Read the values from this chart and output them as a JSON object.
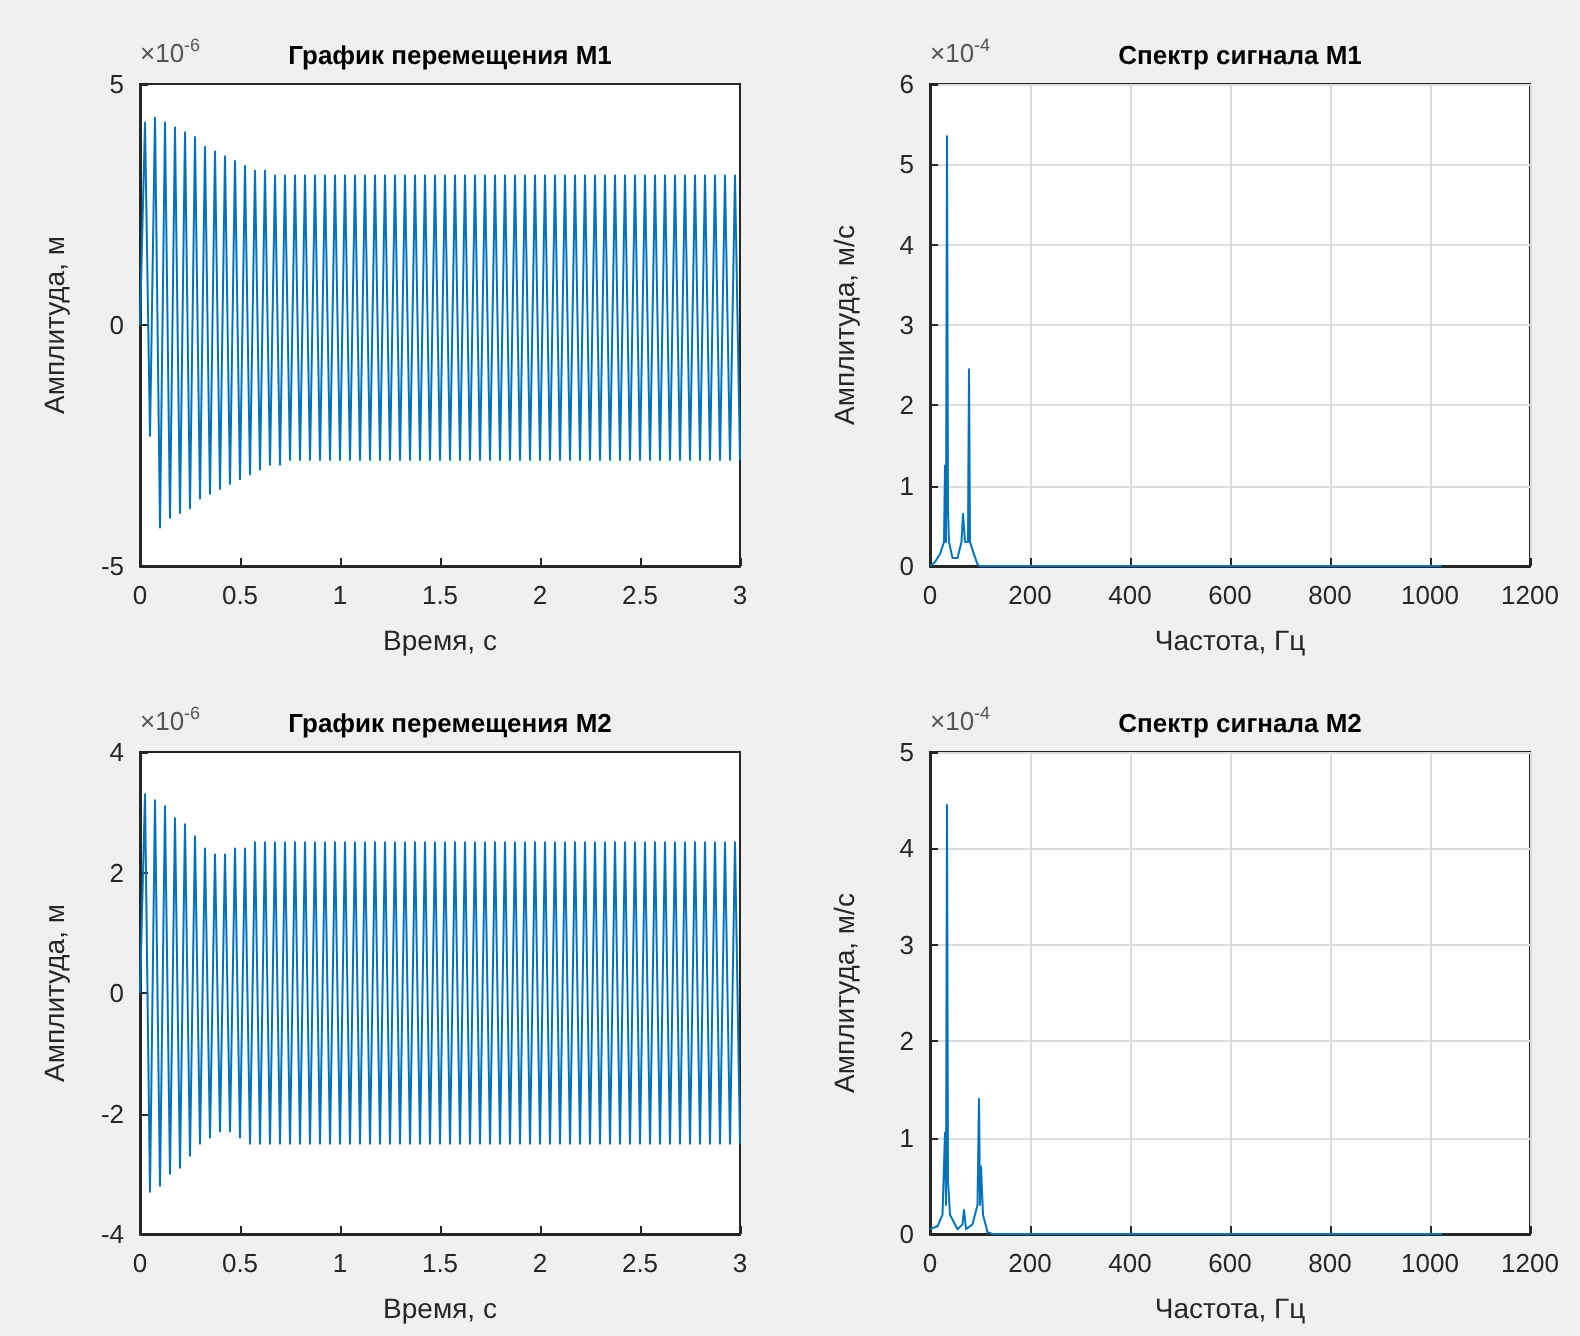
{
  "chart_data": [
    {
      "type": "line",
      "title": "График перемещения М1",
      "xlabel": "Время, с",
      "ylabel": "Амплитуда, м",
      "annotations": [
        "×10$^{-6}$"
      ],
      "xlim": [
        0,
        3
      ],
      "xticks": [
        0,
        0.5,
        1,
        1.5,
        2,
        2.5,
        3
      ],
      "ylim": [
        -5,
        5
      ],
      "yticks": [
        -5,
        0,
        5
      ],
      "grid": false,
      "series": [
        {
          "color": "#0072bd",
          "x": [
            0,
            0.025,
            0.05,
            0.075,
            0.1,
            0.125,
            0.15,
            0.175,
            0.2,
            0.225,
            0.25,
            0.275,
            0.3,
            0.325,
            0.35,
            0.375,
            0.4,
            0.425,
            0.45,
            0.475,
            0.5,
            0.525,
            0.55,
            0.575,
            0.6,
            0.625,
            0.65,
            0.675,
            0.7,
            0.725,
            0.75,
            0.775,
            0.8,
            0.825,
            0.85,
            0.875,
            0.9,
            0.925,
            0.95,
            0.975,
            1,
            1.025,
            1.05,
            1.075,
            1.1,
            1.125,
            1.15,
            1.175,
            1.2,
            1.225,
            1.25,
            1.275,
            1.3,
            1.325,
            1.35,
            1.375,
            1.4,
            1.425,
            1.45,
            1.475,
            1.5,
            1.525,
            1.55,
            1.575,
            1.6,
            1.625,
            1.65,
            1.675,
            1.7,
            1.725,
            1.75,
            1.775,
            1.8,
            1.825,
            1.85,
            1.875,
            1.9,
            1.925,
            1.95,
            1.975,
            2,
            2.025,
            2.05,
            2.075,
            2.1,
            2.125,
            2.15,
            2.175,
            2.2,
            2.225,
            2.25,
            2.275,
            2.3,
            2.325,
            2.35,
            2.375,
            2.4,
            2.425,
            2.45,
            2.475,
            2.5,
            2.525,
            2.55,
            2.575,
            2.6,
            2.625,
            2.65,
            2.675,
            2.7,
            2.725,
            2.75,
            2.775,
            2.8,
            2.825,
            2.85,
            2.875,
            2.9,
            2.925,
            2.95,
            2.975,
            3
          ],
          "values": [
            0,
            4.2,
            -2.3,
            4.3,
            -4.2,
            4.2,
            -4.0,
            4.1,
            -3.9,
            4.0,
            -3.8,
            3.9,
            -3.6,
            3.7,
            -3.5,
            3.6,
            -3.4,
            3.5,
            -3.3,
            3.4,
            -3.2,
            3.3,
            -3.1,
            3.2,
            -3.0,
            3.2,
            -2.9,
            3.1,
            -2.9,
            3.1,
            -2.8,
            3.1,
            -2.8,
            3.1,
            -2.8,
            3.1,
            -2.8,
            3.1,
            -2.8,
            3.1,
            -2.8,
            3.1,
            -2.8,
            3.1,
            -2.8,
            3.1,
            -2.8,
            3.1,
            -2.8,
            3.1,
            -2.8,
            3.1,
            -2.8,
            3.1,
            -2.8,
            3.1,
            -2.8,
            3.1,
            -2.8,
            3.1,
            -2.8,
            3.1,
            -2.8,
            3.1,
            -2.8,
            3.1,
            -2.8,
            3.1,
            -2.8,
            3.1,
            -2.8,
            3.1,
            -2.8,
            3.1,
            -2.8,
            3.1,
            -2.8,
            3.1,
            -2.8,
            3.1,
            -2.8,
            3.1,
            -2.8,
            3.1,
            -2.8,
            3.1,
            -2.8,
            3.1,
            -2.8,
            3.1,
            -2.8,
            3.1,
            -2.8,
            3.1,
            -2.8,
            3.1,
            -2.8,
            3.1,
            -2.8,
            3.1,
            -2.8,
            3.1,
            -2.8,
            3.1,
            -2.8,
            3.1,
            -2.8,
            3.1,
            -2.8,
            3.1,
            -2.8,
            3.1,
            -2.8,
            3.1,
            -2.8,
            3.1,
            -2.8,
            3.1,
            -2.8,
            3.1,
            -2.8
          ]
        }
      ]
    },
    {
      "type": "line",
      "title": "Спектр сигнала М1",
      "xlabel": "Частота, Гц",
      "ylabel": "Амплитуда, м/с",
      "annotations": [
        "×10$^{-4}$"
      ],
      "xlim": [
        0,
        1200
      ],
      "xticks": [
        0,
        200,
        400,
        600,
        800,
        1000,
        1200
      ],
      "ylim": [
        0,
        6
      ],
      "yticks": [
        0,
        1,
        2,
        3,
        4,
        5,
        6
      ],
      "grid": true,
      "series": [
        {
          "color": "#0072bd",
          "x": [
            0,
            10,
            20,
            28,
            30,
            32,
            34,
            36,
            38,
            45,
            55,
            63,
            66,
            70,
            76,
            78,
            80,
            85,
            95,
            100,
            1024
          ],
          "values": [
            0,
            0.05,
            0.15,
            0.3,
            1.25,
            0.3,
            5.35,
            0.7,
            0.3,
            0.1,
            0.1,
            0.3,
            0.65,
            0.3,
            0.3,
            2.45,
            0.3,
            0.2,
            0.02,
            0,
            0
          ]
        }
      ]
    },
    {
      "type": "line",
      "title": "График перемещения М2",
      "xlabel": "Время, с",
      "ylabel": "Амплитуда, м",
      "annotations": [
        "×10$^{-6}$"
      ],
      "xlim": [
        0,
        3
      ],
      "xticks": [
        0,
        0.5,
        1,
        1.5,
        2,
        2.5,
        3
      ],
      "ylim": [
        -4,
        4
      ],
      "yticks": [
        -4,
        -2,
        0,
        2,
        4
      ],
      "grid": false,
      "series": [
        {
          "color": "#0072bd",
          "x": [
            0,
            0.025,
            0.05,
            0.075,
            0.1,
            0.125,
            0.15,
            0.175,
            0.2,
            0.225,
            0.25,
            0.275,
            0.3,
            0.325,
            0.35,
            0.375,
            0.4,
            0.425,
            0.45,
            0.475,
            0.5,
            0.525,
            0.55,
            0.575,
            0.6,
            0.625,
            0.65,
            0.675,
            0.7,
            0.725,
            0.75,
            0.775,
            0.8,
            0.825,
            0.85,
            0.875,
            0.9,
            0.925,
            0.95,
            0.975,
            1,
            1.025,
            1.05,
            1.075,
            1.1,
            1.125,
            1.15,
            1.175,
            1.2,
            1.225,
            1.25,
            1.275,
            1.3,
            1.325,
            1.35,
            1.375,
            1.4,
            1.425,
            1.45,
            1.475,
            1.5,
            1.525,
            1.55,
            1.575,
            1.6,
            1.625,
            1.65,
            1.675,
            1.7,
            1.725,
            1.75,
            1.775,
            1.8,
            1.825,
            1.85,
            1.875,
            1.9,
            1.925,
            1.95,
            1.975,
            2,
            2.025,
            2.05,
            2.075,
            2.1,
            2.125,
            2.15,
            2.175,
            2.2,
            2.225,
            2.25,
            2.275,
            2.3,
            2.325,
            2.35,
            2.375,
            2.4,
            2.425,
            2.45,
            2.475,
            2.5,
            2.525,
            2.55,
            2.575,
            2.6,
            2.625,
            2.65,
            2.675,
            2.7,
            2.725,
            2.75,
            2.775,
            2.8,
            2.825,
            2.85,
            2.875,
            2.9,
            2.925,
            2.95,
            2.975,
            3
          ],
          "values": [
            0,
            3.3,
            -3.3,
            3.2,
            -3.2,
            3.1,
            -3.0,
            2.9,
            -2.9,
            2.8,
            -2.7,
            2.6,
            -2.5,
            2.4,
            -2.4,
            2.3,
            -2.3,
            2.3,
            -2.3,
            2.4,
            -2.4,
            2.4,
            -2.5,
            2.5,
            -2.5,
            2.5,
            -2.5,
            2.5,
            -2.5,
            2.5,
            -2.5,
            2.5,
            -2.5,
            2.5,
            -2.5,
            2.5,
            -2.5,
            2.5,
            -2.5,
            2.5,
            -2.5,
            2.5,
            -2.5,
            2.5,
            -2.5,
            2.5,
            -2.5,
            2.5,
            -2.5,
            2.5,
            -2.5,
            2.5,
            -2.5,
            2.5,
            -2.5,
            2.5,
            -2.5,
            2.5,
            -2.5,
            2.5,
            -2.5,
            2.5,
            -2.5,
            2.5,
            -2.5,
            2.5,
            -2.5,
            2.5,
            -2.5,
            2.5,
            -2.5,
            2.5,
            -2.5,
            2.5,
            -2.5,
            2.5,
            -2.5,
            2.5,
            -2.5,
            2.5,
            -2.5,
            2.5,
            -2.5,
            2.5,
            -2.5,
            2.5,
            -2.5,
            2.5,
            -2.5,
            2.5,
            -2.5,
            2.5,
            -2.5,
            2.5,
            -2.5,
            2.5,
            -2.5,
            2.5,
            -2.5,
            2.5,
            -2.5,
            2.5,
            -2.5,
            2.5,
            -2.5,
            2.5,
            -2.5,
            2.5,
            -2.5,
            2.5,
            -2.5,
            2.5,
            -2.5,
            2.5,
            -2.5,
            2.5,
            -2.5,
            2.5,
            -2.5,
            2.5,
            -2.5
          ]
        }
      ]
    },
    {
      "type": "line",
      "title": "Спектр сигнала М2",
      "xlabel": "Частота, Гц",
      "ylabel": "Амплитуда, м/с",
      "annotations": [
        "×10$^{-4}$"
      ],
      "xlim": [
        0,
        1200
      ],
      "xticks": [
        0,
        200,
        400,
        600,
        800,
        1000,
        1200
      ],
      "ylim": [
        0,
        5
      ],
      "yticks": [
        0,
        1,
        2,
        3,
        4,
        5
      ],
      "grid": true,
      "series": [
        {
          "color": "#0072bd",
          "x": [
            0,
            15,
            25,
            30,
            32,
            34,
            36,
            40,
            55,
            65,
            68,
            72,
            85,
            95,
            98,
            100,
            102,
            106,
            115,
            125,
            1024
          ],
          "values": [
            0.05,
            0.08,
            0.2,
            1.05,
            0.3,
            4.45,
            0.55,
            0.2,
            0.05,
            0.1,
            0.25,
            0.05,
            0.1,
            0.3,
            1.4,
            0.3,
            0.7,
            0.2,
            0.02,
            0,
            0
          ]
        }
      ]
    }
  ]
}
